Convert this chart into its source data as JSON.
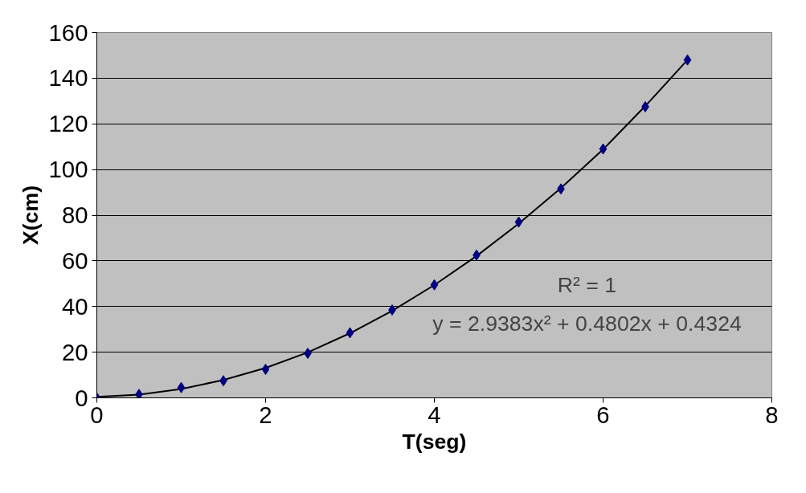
{
  "chart_data": {
    "type": "scatter",
    "xlabel": "T(seg)",
    "ylabel": "X(cm)",
    "annotations": [
      "y = 2.9383x² + 0.4802x + 0.4324",
      "R² = 1"
    ],
    "xlim": [
      0,
      8
    ],
    "xticks": [
      0,
      2,
      4,
      6,
      8
    ],
    "ylim": [
      0,
      160
    ],
    "yticks": [
      0,
      20,
      40,
      60,
      80,
      100,
      120,
      140,
      160
    ],
    "grid": "y",
    "marker": "diamond",
    "series": [
      {
        "color": "#000080",
        "x": [
          0,
          0.5,
          1,
          1.5,
          2,
          2.5,
          3,
          3.5,
          4,
          4.5,
          5,
          5.5,
          6,
          6.5,
          7
        ],
        "values": [
          0,
          1.5,
          4.5,
          7.5,
          12.5,
          19.5,
          28.5,
          38.5,
          49.5,
          62.5,
          77,
          91.5,
          109,
          127.5,
          148
        ]
      },
      {
        "type": "line",
        "color": "#000000",
        "marker": "none",
        "line_style": "solid",
        "x": [
          0,
          0.5,
          1,
          1.5,
          2,
          2.5,
          3,
          3.5,
          4,
          4.5,
          5,
          5.5,
          6,
          6.5,
          7
        ],
        "values": [
          0.4,
          1.4,
          3.9,
          7.8,
          13.1,
          19.9,
          28.3,
          38.1,
          49.4,
          62.1,
          76.3,
          91.9,
          108.8,
          127.8,
          148
        ]
      }
    ]
  }
}
